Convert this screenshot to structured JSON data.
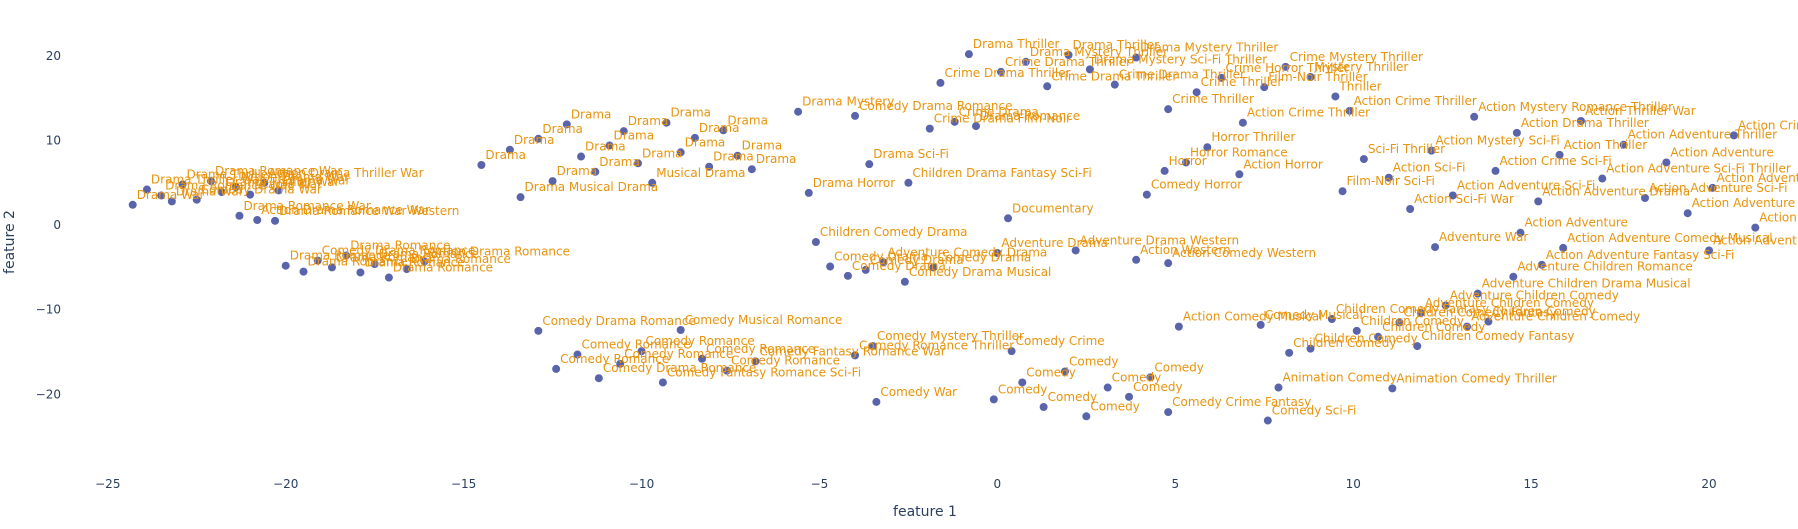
{
  "chart_data": {
    "type": "scatter",
    "title": "",
    "xlabel": "feature 1",
    "ylabel": "feature 2",
    "xlim": [
      -25.5,
      22.5
    ],
    "ylim": [
      -28,
      24
    ],
    "xticks": [
      -25,
      -20,
      -15,
      -10,
      -5,
      0,
      5,
      10,
      15,
      20
    ],
    "yticks": [
      -20,
      -10,
      0,
      10,
      20
    ],
    "xtick_labels": [
      "−25",
      "−20",
      "−15",
      "−10",
      "−5",
      "0",
      "5",
      "10",
      "15",
      "20"
    ],
    "ytick_labels": [
      "−20",
      "−10",
      "0",
      "10",
      "20"
    ],
    "grid": false,
    "marker_color": "#5a64aa",
    "label_color": "#e8940e",
    "points": [
      {
        "x": -24.3,
        "y": 2.4,
        "label": "Drama War"
      },
      {
        "x": -23.9,
        "y": 4.2,
        "label": "Drama Thriller War"
      },
      {
        "x": -23.5,
        "y": 3.5,
        "label": "Drama Romance War"
      },
      {
        "x": -23.2,
        "y": 2.8,
        "label": "Drama War"
      },
      {
        "x": -22.9,
        "y": 4.8,
        "label": "Drama Thriller War"
      },
      {
        "x": -22.5,
        "y": 3.0,
        "label": "Comedy Drama War"
      },
      {
        "x": -22.1,
        "y": 5.2,
        "label": "Drama Romance War"
      },
      {
        "x": -21.8,
        "y": 3.9,
        "label": "Drama Thriller War"
      },
      {
        "x": -21.4,
        "y": 4.5,
        "label": "Action Drama War"
      },
      {
        "x": -21.0,
        "y": 3.6,
        "label": "Drama War"
      },
      {
        "x": -20.6,
        "y": 5.0,
        "label": "Action Drama Thriller War"
      },
      {
        "x": -20.2,
        "y": 4.1,
        "label": "Drama War"
      },
      {
        "x": -21.3,
        "y": 1.1,
        "label": "Drama Romance War"
      },
      {
        "x": -20.8,
        "y": 0.6,
        "label": "Action Drama Romance War"
      },
      {
        "x": -20.3,
        "y": 0.5,
        "label": "Drama Romance War Western"
      },
      {
        "x": -20.0,
        "y": -4.8,
        "label": "Drama Romance"
      },
      {
        "x": -19.5,
        "y": -5.5,
        "label": "Drama Romance"
      },
      {
        "x": -19.1,
        "y": -4.2,
        "label": "Comedy Drama Romance"
      },
      {
        "x": -18.7,
        "y": -5.0,
        "label": "Drama Romance"
      },
      {
        "x": -18.3,
        "y": -3.6,
        "label": "Drama Romance"
      },
      {
        "x": -17.9,
        "y": -5.6,
        "label": "Drama Romance"
      },
      {
        "x": -17.5,
        "y": -4.6,
        "label": "Drama Romance"
      },
      {
        "x": -17.1,
        "y": -6.2,
        "label": "Drama Romance"
      },
      {
        "x": -16.6,
        "y": -5.2,
        "label": "Drama Romance"
      },
      {
        "x": -16.1,
        "y": -4.3,
        "label": "Action Drama Romance"
      },
      {
        "x": -14.5,
        "y": 7.1,
        "label": "Drama"
      },
      {
        "x": -13.7,
        "y": 8.9,
        "label": "Drama"
      },
      {
        "x": -13.4,
        "y": 3.3,
        "label": "Drama Musical Drama"
      },
      {
        "x": -12.9,
        "y": 10.2,
        "label": "Drama"
      },
      {
        "x": -12.5,
        "y": 5.2,
        "label": "Drama"
      },
      {
        "x": -12.1,
        "y": 11.9,
        "label": "Drama"
      },
      {
        "x": -11.7,
        "y": 8.1,
        "label": "Drama"
      },
      {
        "x": -11.3,
        "y": 6.3,
        "label": "Drama"
      },
      {
        "x": -10.9,
        "y": 9.4,
        "label": "Drama"
      },
      {
        "x": -10.5,
        "y": 11.1,
        "label": "Drama"
      },
      {
        "x": -10.1,
        "y": 7.3,
        "label": "Drama"
      },
      {
        "x": -9.7,
        "y": 5.0,
        "label": "Musical Drama"
      },
      {
        "x": -9.3,
        "y": 12.1,
        "label": "Drama"
      },
      {
        "x": -8.9,
        "y": 8.6,
        "label": "Drama"
      },
      {
        "x": -8.5,
        "y": 10.3,
        "label": "Drama"
      },
      {
        "x": -8.1,
        "y": 6.9,
        "label": "Drama"
      },
      {
        "x": -7.7,
        "y": 11.2,
        "label": "Drama"
      },
      {
        "x": -7.3,
        "y": 8.2,
        "label": "Drama"
      },
      {
        "x": -6.9,
        "y": 6.6,
        "label": "Drama"
      },
      {
        "x": -5.6,
        "y": 13.4,
        "label": "Drama Mystery"
      },
      {
        "x": -5.3,
        "y": 3.8,
        "label": "Drama Horror"
      },
      {
        "x": -4.0,
        "y": 12.9,
        "label": "Comedy Drama Romance"
      },
      {
        "x": -3.6,
        "y": 7.2,
        "label": "Drama Sci-Fi"
      },
      {
        "x": -2.5,
        "y": 5.0,
        "label": "Children Drama Fantasy Sci-Fi"
      },
      {
        "x": -1.9,
        "y": 11.4,
        "label": "Crime Drama Film-Noir"
      },
      {
        "x": -1.2,
        "y": 12.2,
        "label": "Crime Drama"
      },
      {
        "x": -0.6,
        "y": 11.7,
        "label": "Drama Romance"
      },
      {
        "x": -1.6,
        "y": 16.8,
        "label": "Crime Drama Thriller"
      },
      {
        "x": -0.8,
        "y": 20.2,
        "label": "Drama Thriller"
      },
      {
        "x": 0.1,
        "y": 18.1,
        "label": "Crime Drama Thriller"
      },
      {
        "x": 0.8,
        "y": 19.3,
        "label": "Drama Mystery Thriller"
      },
      {
        "x": 1.4,
        "y": 16.4,
        "label": "Crime Drama Thriller"
      },
      {
        "x": 2.0,
        "y": 20.1,
        "label": "Drama Thriller"
      },
      {
        "x": 2.6,
        "y": 18.4,
        "label": "Drama Mystery Sci-Fi Thriller"
      },
      {
        "x": 3.3,
        "y": 16.6,
        "label": "Crime Drama Thriller"
      },
      {
        "x": 3.9,
        "y": 19.8,
        "label": "Drama Mystery Thriller"
      },
      {
        "x": 4.8,
        "y": 13.7,
        "label": "Crime Thriller"
      },
      {
        "x": 5.6,
        "y": 15.7,
        "label": "Crime Thriller"
      },
      {
        "x": 6.3,
        "y": 17.4,
        "label": "Crime Horror Thriller"
      },
      {
        "x": 6.9,
        "y": 12.1,
        "label": "Action Crime Thriller"
      },
      {
        "x": 7.5,
        "y": 16.3,
        "label": "Film-Noir Thriller"
      },
      {
        "x": 8.1,
        "y": 18.7,
        "label": "Crime Mystery Thriller"
      },
      {
        "x": 8.8,
        "y": 17.5,
        "label": "Mystery Thriller"
      },
      {
        "x": 9.5,
        "y": 15.2,
        "label": "Thriller"
      },
      {
        "x": 9.9,
        "y": 13.5,
        "label": "Action Crime Thriller"
      },
      {
        "x": 4.2,
        "y": 3.6,
        "label": "Comedy Horror"
      },
      {
        "x": 4.7,
        "y": 6.4,
        "label": "Horror"
      },
      {
        "x": 5.3,
        "y": 7.4,
        "label": "Horror Romance"
      },
      {
        "x": 5.9,
        "y": 9.2,
        "label": "Horror Thriller"
      },
      {
        "x": 6.8,
        "y": 6.0,
        "label": "Action Horror"
      },
      {
        "x": 0.3,
        "y": 0.8,
        "label": "Documentary"
      },
      {
        "x": -5.1,
        "y": -2.0,
        "label": "Children Comedy Drama"
      },
      {
        "x": -4.7,
        "y": -4.9,
        "label": "Comedy Drama"
      },
      {
        "x": -4.2,
        "y": -6.0,
        "label": "Comedy Drama"
      },
      {
        "x": -3.7,
        "y": -5.3,
        "label": "Comedy Drama"
      },
      {
        "x": -3.2,
        "y": -4.4,
        "label": "Adventure Comedy Drama"
      },
      {
        "x": -2.6,
        "y": -6.7,
        "label": "Comedy Drama Musical"
      },
      {
        "x": -1.8,
        "y": -5.0,
        "label": "Comedy Drama"
      },
      {
        "x": 0.0,
        "y": -3.3,
        "label": "Adventure Drama"
      },
      {
        "x": 2.2,
        "y": -3.0,
        "label": "Adventure Drama Western"
      },
      {
        "x": 3.9,
        "y": -4.1,
        "label": "Action Western"
      },
      {
        "x": 4.8,
        "y": -4.5,
        "label": "Action Comedy Western"
      },
      {
        "x": -12.9,
        "y": -12.5,
        "label": "Comedy Drama Romance"
      },
      {
        "x": -12.4,
        "y": -17.0,
        "label": "Comedy Romance"
      },
      {
        "x": -11.8,
        "y": -15.3,
        "label": "Comedy Romance"
      },
      {
        "x": -11.2,
        "y": -18.1,
        "label": "Comedy Drama Romance"
      },
      {
        "x": -10.6,
        "y": -16.4,
        "label": "Comedy Romance"
      },
      {
        "x": -10.0,
        "y": -14.9,
        "label": "Comedy Romance"
      },
      {
        "x": -9.4,
        "y": -18.6,
        "label": "Comedy Fantasy Romance Sci-Fi"
      },
      {
        "x": -8.9,
        "y": -12.4,
        "label": "Comedy Musical Romance"
      },
      {
        "x": -8.3,
        "y": -15.8,
        "label": "Comedy Romance"
      },
      {
        "x": -7.6,
        "y": -17.2,
        "label": "Comedy Romance"
      },
      {
        "x": -6.8,
        "y": -16.1,
        "label": "Comedy Fantasy Romance War"
      },
      {
        "x": -4.0,
        "y": -15.4,
        "label": "Comedy Romance Thriller"
      },
      {
        "x": -3.5,
        "y": -14.3,
        "label": "Comedy Mystery Thriller"
      },
      {
        "x": -3.4,
        "y": -20.9,
        "label": "Comedy War"
      },
      {
        "x": 0.4,
        "y": -14.9,
        "label": "Comedy Crime"
      },
      {
        "x": -0.1,
        "y": -20.6,
        "label": "Comedy"
      },
      {
        "x": 0.7,
        "y": -18.6,
        "label": "Comedy"
      },
      {
        "x": 1.3,
        "y": -21.5,
        "label": "Comedy"
      },
      {
        "x": 1.9,
        "y": -17.3,
        "label": "Comedy"
      },
      {
        "x": 2.5,
        "y": -22.6,
        "label": "Comedy"
      },
      {
        "x": 3.1,
        "y": -19.2,
        "label": "Comedy"
      },
      {
        "x": 3.7,
        "y": -20.3,
        "label": "Comedy"
      },
      {
        "x": 4.3,
        "y": -18.0,
        "label": "Comedy"
      },
      {
        "x": 4.8,
        "y": -22.1,
        "label": "Comedy Crime Fantasy"
      },
      {
        "x": 5.1,
        "y": -12.0,
        "label": "Action Comedy Musical"
      },
      {
        "x": 7.4,
        "y": -11.8,
        "label": "Comedy Musical"
      },
      {
        "x": 7.9,
        "y": -19.2,
        "label": "Animation Comedy"
      },
      {
        "x": 7.6,
        "y": -23.1,
        "label": "Comedy Sci-Fi"
      },
      {
        "x": 8.2,
        "y": -15.1,
        "label": "Children Comedy"
      },
      {
        "x": 8.8,
        "y": -14.6,
        "label": "Children Comedy"
      },
      {
        "x": 9.4,
        "y": -11.1,
        "label": "Children Comedy Fantasy"
      },
      {
        "x": 10.1,
        "y": -12.5,
        "label": "Children Comedy"
      },
      {
        "x": 10.7,
        "y": -13.2,
        "label": "Children Comedy"
      },
      {
        "x": 11.3,
        "y": -11.5,
        "label": "Children Comedy Fantasy"
      },
      {
        "x": 11.9,
        "y": -10.4,
        "label": "Adventure Children Comedy"
      },
      {
        "x": 12.6,
        "y": -9.5,
        "label": "Adventure Children Comedy"
      },
      {
        "x": 13.2,
        "y": -12.0,
        "label": "Adventure Children Comedy"
      },
      {
        "x": 13.8,
        "y": -11.4,
        "label": "Children Comedy"
      },
      {
        "x": 14.5,
        "y": -6.1,
        "label": "Adventure Children Romance"
      },
      {
        "x": 13.5,
        "y": -8.1,
        "label": "Adventure Children Drama Musical"
      },
      {
        "x": 11.8,
        "y": -14.3,
        "label": "Children Comedy Fantasy"
      },
      {
        "x": 11.1,
        "y": -19.3,
        "label": "Animation Comedy Thriller"
      },
      {
        "x": 10.3,
        "y": 7.8,
        "label": "Sci-Fi Thriller"
      },
      {
        "x": 9.7,
        "y": 4.0,
        "label": "Film-Noir Sci-Fi"
      },
      {
        "x": 11.0,
        "y": 5.6,
        "label": "Action Sci-Fi"
      },
      {
        "x": 11.6,
        "y": 1.9,
        "label": "Action Sci-Fi War"
      },
      {
        "x": 12.2,
        "y": 8.8,
        "label": "Action Mystery Sci-Fi"
      },
      {
        "x": 12.8,
        "y": 3.5,
        "label": "Action Adventure Sci-Fi"
      },
      {
        "x": 13.4,
        "y": 12.8,
        "label": "Action Mystery Romance Thriller"
      },
      {
        "x": 14.0,
        "y": 6.4,
        "label": "Action Crime Sci-Fi"
      },
      {
        "x": 14.6,
        "y": 10.9,
        "label": "Action Drama Thriller"
      },
      {
        "x": 15.2,
        "y": 2.8,
        "label": "Action Adventure Drama"
      },
      {
        "x": 15.8,
        "y": 8.3,
        "label": "Action Thriller"
      },
      {
        "x": 16.4,
        "y": 12.3,
        "label": "Action Thriller War"
      },
      {
        "x": 17.0,
        "y": 5.5,
        "label": "Action Adventure Sci-Fi Thriller"
      },
      {
        "x": 17.6,
        "y": 9.5,
        "label": "Action Adventure Thriller"
      },
      {
        "x": 18.2,
        "y": 3.2,
        "label": "Action Adventure Sci-Fi"
      },
      {
        "x": 18.8,
        "y": 7.4,
        "label": "Action Adventure"
      },
      {
        "x": 19.4,
        "y": 1.4,
        "label": "Action Adventure Fantasy"
      },
      {
        "x": 20.1,
        "y": 4.4,
        "label": "Action Adventure"
      },
      {
        "x": 20.7,
        "y": 10.6,
        "label": "Action Crime Thriller"
      },
      {
        "x": 21.3,
        "y": -0.3,
        "label": "Action Adventure Comedy"
      },
      {
        "x": 14.7,
        "y": -0.9,
        "label": "Action Adventure"
      },
      {
        "x": 12.3,
        "y": -2.6,
        "label": "Adventure War"
      },
      {
        "x": 15.9,
        "y": -2.7,
        "label": "Action Adventure Comedy Musical"
      },
      {
        "x": 15.3,
        "y": -4.7,
        "label": "Action Adventure Fantasy Sci-Fi"
      },
      {
        "x": 20.0,
        "y": -3.0,
        "label": "Action Adventure Comedy Romance"
      }
    ]
  }
}
